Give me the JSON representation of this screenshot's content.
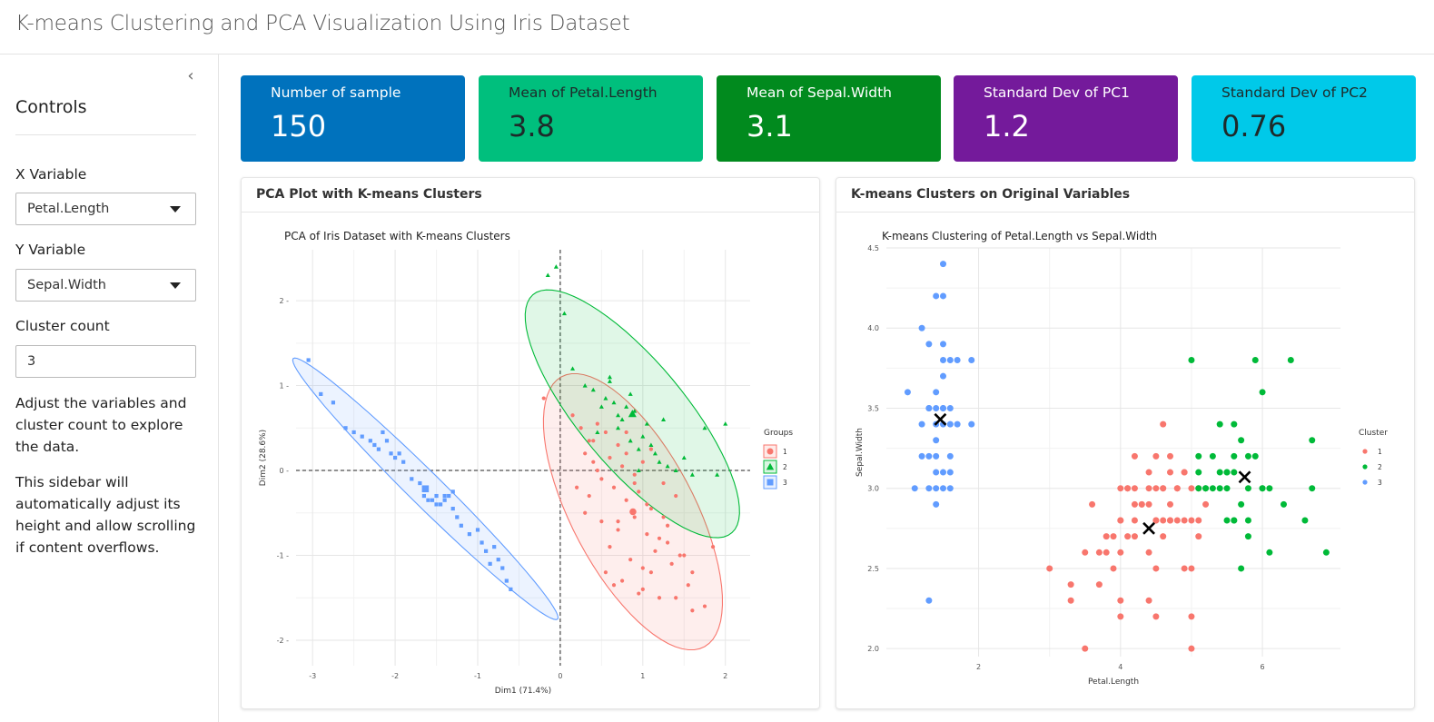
{
  "app": {
    "title": "K-means Clustering and PCA Visualization Using Iris Dataset"
  },
  "sidebar": {
    "collapse_icon": "chevron-left-icon",
    "heading": "Controls",
    "x_label": "X Variable",
    "x_value": "Petal.Length",
    "y_label": "Y Variable",
    "y_value": "Sepal.Width",
    "k_label": "Cluster count",
    "k_value": "3",
    "help1": "Adjust the variables and cluster count to explore the data.",
    "help2": "This sidebar will automatically adjust its height and allow scrolling if content overflows."
  },
  "value_boxes": [
    {
      "caption": "Number of sample",
      "value": "150",
      "color": "#0072bd"
    },
    {
      "caption": "Mean of Petal.Length",
      "value": "3.8",
      "color": "#00bf7d"
    },
    {
      "caption": "Mean of Sepal.Width",
      "value": "3.1",
      "color": "#018a1e"
    },
    {
      "caption": "Standard Dev of PC1",
      "value": "1.2",
      "color": "#741a9b"
    },
    {
      "caption": "Standard Dev of PC2",
      "value": "0.76",
      "color": "#00c9e9"
    }
  ],
  "cards": {
    "pca_title": "PCA Plot with K-means Clusters",
    "km_title": "K-means Clusters on Original Variables"
  },
  "chart_data": [
    {
      "type": "scatter",
      "title": "PCA of Iris Dataset with K-means Clusters",
      "xlabel": "Dim1 (71.4%)",
      "ylabel": "Dim2 (28.6%)",
      "xlim": [
        -3.2,
        2.3
      ],
      "ylim": [
        -2.3,
        2.6
      ],
      "x_ticks": [
        "-3",
        "-2",
        "-1",
        "0",
        "1",
        "2"
      ],
      "y_ticks": [
        "-2",
        "-1",
        "0",
        "1",
        "2"
      ],
      "legend_title": "Groups",
      "legend_position": "right",
      "grid": true,
      "ellipses": true,
      "colors": {
        "1": "#f8766d",
        "2": "#00ba38",
        "3": "#619cff"
      },
      "series": [
        {
          "name": "1",
          "marker": "circle",
          "x": [
            -0.2,
            0.15,
            0.25,
            0.3,
            0.35,
            0.4,
            0.45,
            0.55,
            0.6,
            0.7,
            0.75,
            0.8,
            0.9,
            1.0,
            1.1,
            0.2,
            0.35,
            0.5,
            0.65,
            0.8,
            0.95,
            1.1,
            1.25,
            1.4,
            0.3,
            0.5,
            0.7,
            0.9,
            1.05,
            1.2,
            1.3,
            1.5,
            0.6,
            0.85,
            1.0,
            1.15,
            1.35,
            1.55,
            0.75,
            0.95,
            1.1,
            1.3,
            1.45,
            1.6,
            0.55,
            0.65,
            1.0,
            1.4,
            1.6,
            1.75,
            1.85,
            1.2,
            0.4,
            0.8,
            1.05,
            1.25,
            0.45,
            0.7,
            0.9
          ],
          "y": [
            0.85,
            0.65,
            0.5,
            0.2,
            0.35,
            0.1,
            0.55,
            0.45,
            0.15,
            0.3,
            0.05,
            0.2,
            -0.05,
            0.1,
            0.25,
            -0.2,
            -0.3,
            -0.1,
            -0.2,
            -0.35,
            -0.25,
            -0.45,
            -0.55,
            -0.3,
            -0.5,
            -0.6,
            -0.7,
            -0.55,
            -0.75,
            -0.8,
            -0.65,
            -1.0,
            -0.9,
            -1.05,
            -1.15,
            -0.95,
            -1.1,
            -1.35,
            -1.3,
            -1.45,
            -1.2,
            -0.85,
            -1.0,
            -1.2,
            -1.2,
            -1.35,
            -1.4,
            -1.5,
            -1.65,
            -1.6,
            -0.9,
            -1.5,
            0.35,
            0.45,
            -0.4,
            -0.15,
            0.0,
            -0.6,
            -0.15
          ]
        },
        {
          "name": "2",
          "marker": "triangle",
          "x": [
            -0.15,
            -0.05,
            0.05,
            0.15,
            0.3,
            0.4,
            0.5,
            0.55,
            0.6,
            0.65,
            0.7,
            0.75,
            0.8,
            0.85,
            0.9,
            1.0,
            1.05,
            1.1,
            1.15,
            1.2,
            1.3,
            1.4,
            1.5,
            1.6,
            1.75,
            1.9,
            2.0,
            0.45,
            0.85,
            0.95,
            1.25,
            0.6,
            0.7,
            0.95
          ],
          "y": [
            2.3,
            2.4,
            1.85,
            1.2,
            1.0,
            0.95,
            0.75,
            0.85,
            1.1,
            0.8,
            0.5,
            0.6,
            0.75,
            0.9,
            0.7,
            0.4,
            0.55,
            0.3,
            0.2,
            0.1,
            0.05,
            0.0,
            0.15,
            -0.05,
            0.5,
            -0.05,
            0.55,
            0.45,
            0.35,
            0.25,
            0.6,
            1.05,
            0.65,
            0.0
          ]
        },
        {
          "name": "3",
          "marker": "square",
          "x": [
            -3.05,
            -2.9,
            -2.75,
            -2.6,
            -2.5,
            -2.4,
            -2.3,
            -2.25,
            -2.2,
            -2.15,
            -2.1,
            -2.05,
            -2.0,
            -1.95,
            -1.9,
            -1.8,
            -1.7,
            -1.65,
            -1.6,
            -1.55,
            -1.5,
            -1.45,
            -1.4,
            -1.35,
            -1.3,
            -1.25,
            -1.2,
            -1.1,
            -1.0,
            -0.95,
            -0.9,
            -0.85,
            -0.8,
            -0.75,
            -0.7,
            -0.65,
            -0.6,
            -1.5,
            -1.4,
            -1.3
          ],
          "y": [
            1.3,
            0.9,
            0.8,
            0.5,
            0.45,
            0.4,
            0.35,
            0.3,
            0.25,
            0.45,
            0.35,
            0.2,
            0.15,
            0.2,
            0.1,
            -0.1,
            -0.15,
            -0.3,
            -0.35,
            -0.35,
            -0.3,
            -0.4,
            -0.35,
            -0.3,
            -0.45,
            -0.55,
            -0.65,
            -0.75,
            -0.7,
            -0.85,
            -0.95,
            -1.1,
            -0.9,
            -1.05,
            -1.15,
            -1.3,
            -1.4,
            -0.4,
            -0.3,
            -0.25
          ]
        }
      ]
    },
    {
      "type": "scatter",
      "title": "K-means Clustering of Petal.Length vs Sepal.Width",
      "xlabel": "Petal.Length",
      "ylabel": "Sepal.Width",
      "xlim": [
        0.7,
        7.1
      ],
      "ylim": [
        1.95,
        4.5
      ],
      "x_ticks": [
        "2",
        "4",
        "6"
      ],
      "y_ticks": [
        "2.0",
        "2.5",
        "3.0",
        "3.5",
        "4.0",
        "4.5"
      ],
      "legend_title": "Cluster",
      "legend_position": "right",
      "grid": true,
      "colors": {
        "1": "#f8766d",
        "2": "#00ba38",
        "3": "#619cff"
      },
      "centers": [
        {
          "cluster": "1",
          "x": 4.4,
          "y": 2.75
        },
        {
          "cluster": "2",
          "x": 5.75,
          "y": 3.07
        },
        {
          "cluster": "3",
          "x": 1.46,
          "y": 3.43
        }
      ],
      "series": [
        {
          "name": "1",
          "x": [
            3.0,
            3.3,
            3.3,
            3.5,
            3.6,
            3.7,
            3.8,
            3.9,
            3.9,
            4.0,
            4.0,
            4.0,
            4.0,
            4.1,
            4.1,
            4.2,
            4.2,
            4.2,
            4.3,
            4.4,
            4.4,
            4.4,
            4.5,
            4.5,
            4.5,
            4.5,
            4.5,
            4.6,
            4.6,
            4.6,
            4.7,
            4.7,
            4.7,
            4.7,
            4.8,
            4.8,
            4.9,
            4.9,
            5.0,
            5.0,
            5.0,
            5.1,
            5.1,
            3.5,
            3.7,
            4.0,
            4.2,
            4.4,
            4.5,
            4.6,
            4.7,
            4.8,
            4.9,
            5.0,
            5.1,
            5.2,
            4.1,
            4.3,
            4.9,
            5.0,
            4.6,
            4.4,
            4.2,
            4.0,
            3.8
          ],
          "y": [
            2.5,
            2.4,
            2.3,
            2.6,
            2.9,
            2.4,
            2.6,
            2.5,
            2.7,
            2.2,
            2.3,
            2.6,
            2.8,
            2.7,
            3.0,
            2.7,
            2.9,
            3.0,
            2.9,
            2.3,
            2.6,
            3.0,
            2.2,
            2.5,
            2.8,
            3.0,
            3.2,
            2.8,
            3.0,
            3.4,
            2.8,
            3.1,
            3.2,
            2.9,
            2.8,
            3.0,
            2.5,
            3.1,
            2.0,
            2.2,
            2.5,
            2.7,
            2.8,
            2.0,
            2.6,
            2.8,
            2.8,
            2.9,
            2.8,
            2.7,
            2.8,
            3.0,
            2.8,
            3.0,
            3.0,
            2.9,
            3.0,
            2.9,
            3.1,
            2.8,
            3.0,
            3.1,
            3.2,
            3.0,
            2.7
          ]
        },
        {
          "name": "2",
          "x": [
            5.1,
            5.1,
            5.2,
            5.3,
            5.4,
            5.5,
            5.6,
            5.6,
            5.7,
            5.8,
            5.8,
            5.9,
            6.0,
            6.1,
            6.1,
            6.3,
            6.4,
            6.6,
            6.7,
            6.7,
            6.9,
            5.0,
            5.2,
            5.4,
            5.5,
            5.6,
            5.7,
            5.8,
            6.0,
            5.9,
            5.5,
            5.6,
            5.4,
            5.3,
            5.7,
            5.1,
            5.6,
            5.5,
            5.8,
            6.0
          ],
          "y": [
            3.1,
            3.2,
            3.0,
            3.2,
            3.4,
            3.1,
            2.8,
            3.4,
            2.5,
            3.0,
            2.7,
            3.2,
            3.0,
            2.6,
            3.0,
            2.9,
            3.8,
            2.8,
            3.0,
            3.3,
            2.6,
            3.8,
            3.0,
            3.1,
            3.0,
            3.1,
            3.3,
            3.2,
            3.6,
            3.8,
            2.8,
            2.8,
            3.0,
            3.0,
            2.9,
            3.0,
            3.2,
            3.1,
            2.8,
            3.0
          ]
        },
        {
          "name": "3",
          "x": [
            1.0,
            1.1,
            1.2,
            1.2,
            1.3,
            1.3,
            1.3,
            1.4,
            1.4,
            1.4,
            1.4,
            1.4,
            1.5,
            1.5,
            1.5,
            1.5,
            1.5,
            1.6,
            1.6,
            1.6,
            1.6,
            1.7,
            1.7,
            1.9,
            1.9,
            1.3,
            1.4,
            1.5,
            1.4,
            1.6,
            1.5,
            1.2,
            1.3,
            1.4,
            1.5,
            1.6,
            1.4,
            1.5,
            1.3,
            1.5
          ],
          "y": [
            3.6,
            3.0,
            3.2,
            4.0,
            3.0,
            3.2,
            3.5,
            2.9,
            3.0,
            3.2,
            3.4,
            3.6,
            3.1,
            3.4,
            3.7,
            4.2,
            4.4,
            3.1,
            3.2,
            3.4,
            3.8,
            3.4,
            3.8,
            3.4,
            3.8,
            2.3,
            3.5,
            3.5,
            3.3,
            3.5,
            3.9,
            3.4,
            3.9,
            4.2,
            3.8,
            3.0,
            3.1,
            3.5,
            3.5,
            3.0
          ]
        }
      ]
    }
  ]
}
